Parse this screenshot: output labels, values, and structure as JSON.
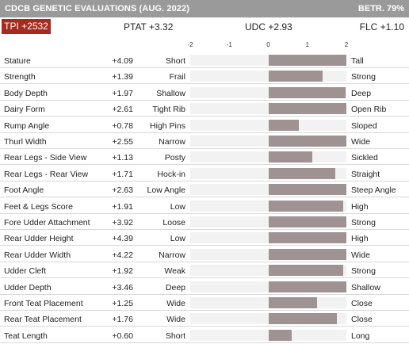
{
  "header": {
    "title": "CDCB GENETIC EVALUATIONS (AUG. 2022)",
    "reliability": "BETR. 79%"
  },
  "summary": {
    "tpi": "TPI +2532",
    "ptat": "PTAT +3.32",
    "udc": "UDC +2.93",
    "flc": "FLC +1.10"
  },
  "colors": {
    "header_bg": "#9a9a9a",
    "tpi_bg": "#a52a1f",
    "bar": "#9e9292",
    "track": "#f2f2f2"
  },
  "chart_data": {
    "type": "bar",
    "xlim": [
      -2,
      2
    ],
    "axis_ticks": [
      "-2",
      "-1",
      "0",
      "1",
      "2"
    ],
    "traits": [
      {
        "name": "Stature",
        "value": "+4.09",
        "x": 4.09,
        "low": "Short",
        "high": "Tall"
      },
      {
        "name": "Strength",
        "value": "+1.39",
        "x": 1.39,
        "low": "Frail",
        "high": "Strong"
      },
      {
        "name": "Body Depth",
        "value": "+1.97",
        "x": 1.97,
        "low": "Shallow",
        "high": "Deep"
      },
      {
        "name": "Dairy Form",
        "value": "+2.61",
        "x": 2.61,
        "low": "Tight Rib",
        "high": "Open Rib"
      },
      {
        "name": "Rump Angle",
        "value": "+0.78",
        "x": 0.78,
        "low": "High Pins",
        "high": "Sloped"
      },
      {
        "name": "Thurl Width",
        "value": "+2.55",
        "x": 2.55,
        "low": "Narrow",
        "high": "Wide"
      },
      {
        "name": "Rear Legs - Side View",
        "value": "+1.13",
        "x": 1.13,
        "low": "Posty",
        "high": "Sickled"
      },
      {
        "name": "Rear Legs - Rear View",
        "value": "+1.71",
        "x": 1.71,
        "low": "Hock-in",
        "high": "Straight"
      },
      {
        "name": "Foot Angle",
        "value": "+2.63",
        "x": 2.63,
        "low": "Low Angle",
        "high": "Steep Angle"
      },
      {
        "name": "Feet & Legs Score",
        "value": "+1.91",
        "x": 1.91,
        "low": "Low",
        "high": "High"
      },
      {
        "name": "Fore Udder Attachment",
        "value": "+3.92",
        "x": 3.92,
        "low": "Loose",
        "high": "Strong"
      },
      {
        "name": "Rear Udder Height",
        "value": "+4.39",
        "x": 4.39,
        "low": "Low",
        "high": "High"
      },
      {
        "name": "Rear Udder Width",
        "value": "+4.22",
        "x": 4.22,
        "low": "Narrow",
        "high": "Wide"
      },
      {
        "name": "Udder Cleft",
        "value": "+1.92",
        "x": 1.92,
        "low": "Weak",
        "high": "Strong"
      },
      {
        "name": "Udder Depth",
        "value": "+3.46",
        "x": 3.46,
        "low": "Deep",
        "high": "Shallow"
      },
      {
        "name": "Front Teat Placement",
        "value": "+1.25",
        "x": 1.25,
        "low": "Wide",
        "high": "Close"
      },
      {
        "name": "Rear Teat Placement",
        "value": "+1.76",
        "x": 1.76,
        "low": "Wide",
        "high": "Close"
      },
      {
        "name": "Teat Length",
        "value": "+0.60",
        "x": 0.6,
        "low": "Short",
        "high": "Long"
      }
    ]
  }
}
